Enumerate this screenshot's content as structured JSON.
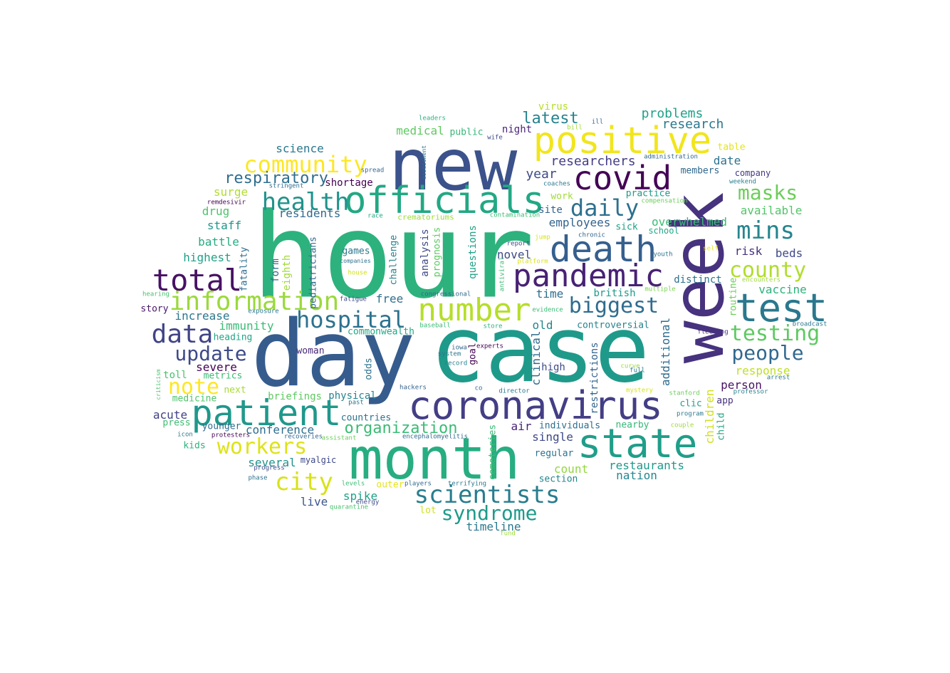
{
  "wordcloud": {
    "palette": "viridis",
    "background": "#ffffff",
    "words": [
      {
        "text": "hour",
        "color": "#2db27d"
      },
      {
        "text": "day",
        "color": "#365c8d"
      },
      {
        "text": "case",
        "color": "#1f9a8a"
      },
      {
        "text": "week",
        "color": "#46327e"
      },
      {
        "text": "new",
        "color": "#3b528b"
      },
      {
        "text": "month",
        "color": "#27ad81"
      },
      {
        "text": "patient",
        "color": "#1f988b"
      },
      {
        "text": "coronavirus",
        "color": "#433e85"
      },
      {
        "text": "state",
        "color": "#1f9e89"
      },
      {
        "text": "positive",
        "color": "#f1e51d"
      },
      {
        "text": "officials",
        "color": "#22a884"
      },
      {
        "text": "covid",
        "color": "#440154"
      },
      {
        "text": "death",
        "color": "#355f8d"
      },
      {
        "text": "pandemic",
        "color": "#482173"
      },
      {
        "text": "number",
        "color": "#b5de2b"
      },
      {
        "text": "test",
        "color": "#2a788e"
      },
      {
        "text": "total",
        "color": "#471164"
      },
      {
        "text": "information",
        "color": "#9bd93c"
      },
      {
        "text": "health",
        "color": "#20938c"
      },
      {
        "text": "hospital",
        "color": "#2c728e"
      },
      {
        "text": "community",
        "color": "#fde725"
      },
      {
        "text": "data",
        "color": "#414487"
      },
      {
        "text": "scientists",
        "color": "#287d8e"
      },
      {
        "text": "syndrome",
        "color": "#1e9b8a"
      },
      {
        "text": "masks",
        "color": "#6ccd5a"
      },
      {
        "text": "mins",
        "color": "#25858e"
      },
      {
        "text": "county",
        "color": "#b0dd2f"
      },
      {
        "text": "testing",
        "color": "#5ec962"
      },
      {
        "text": "people",
        "color": "#31688e"
      },
      {
        "text": "biggest",
        "color": "#2f6c8e"
      },
      {
        "text": "daily",
        "color": "#2d708e"
      },
      {
        "text": "city",
        "color": "#d8e219"
      },
      {
        "text": "workers",
        "color": "#dde318"
      },
      {
        "text": "note",
        "color": "#fde725"
      },
      {
        "text": "update",
        "color": "#3e4a89"
      },
      {
        "text": "respiratory",
        "color": "#2e6e8e"
      },
      {
        "text": "organization",
        "color": "#3bbb75"
      },
      {
        "text": "latest",
        "color": "#26828e"
      },
      {
        "text": "researchers",
        "color": "#433e85"
      },
      {
        "text": "problems",
        "color": "#1fa187"
      },
      {
        "text": "research",
        "color": "#2a788e"
      },
      {
        "text": "virus",
        "color": "#b5de2b"
      },
      {
        "text": "medical",
        "color": "#5ec962"
      },
      {
        "text": "public",
        "color": "#35b779"
      },
      {
        "text": "night",
        "color": "#482475"
      },
      {
        "text": "science",
        "color": "#2a788e"
      },
      {
        "text": "shortage",
        "color": "#440154"
      },
      {
        "text": "surge",
        "color": "#b0dd2f"
      },
      {
        "text": "drug",
        "color": "#4ec36b"
      },
      {
        "text": "residents",
        "color": "#31688e"
      },
      {
        "text": "staff",
        "color": "#1f968b"
      },
      {
        "text": "battle",
        "color": "#25ab82"
      },
      {
        "text": "highest",
        "color": "#1fa187"
      },
      {
        "text": "year",
        "color": "#3e4a89"
      },
      {
        "text": "date",
        "color": "#2c728e"
      },
      {
        "text": "members",
        "color": "#31688e"
      },
      {
        "text": "company",
        "color": "#443a83"
      },
      {
        "text": "table",
        "color": "#e5e419"
      },
      {
        "text": "work",
        "color": "#a2da37"
      },
      {
        "text": "practice",
        "color": "#1f9a8a"
      },
      {
        "text": "site",
        "color": "#33638d"
      },
      {
        "text": "employees",
        "color": "#33638d"
      },
      {
        "text": "sick",
        "color": "#1fa088"
      },
      {
        "text": "school",
        "color": "#21a685"
      },
      {
        "text": "overwhelmed",
        "color": "#3bbb75"
      },
      {
        "text": "available",
        "color": "#52c569"
      },
      {
        "text": "vaccine",
        "color": "#2db27d"
      },
      {
        "text": "beds",
        "color": "#3e4989"
      },
      {
        "text": "risk",
        "color": "#46327e"
      },
      {
        "text": "distinct",
        "color": "#2c728e"
      },
      {
        "text": "novel",
        "color": "#3e4989"
      },
      {
        "text": "time",
        "color": "#2f6c8e"
      },
      {
        "text": "british",
        "color": "#1f9a8a"
      },
      {
        "text": "controversial",
        "color": "#26828e"
      },
      {
        "text": "old",
        "color": "#25858e"
      },
      {
        "text": "free",
        "color": "#2e6e8e"
      },
      {
        "text": "games",
        "color": "#2a788e"
      },
      {
        "text": "immunity",
        "color": "#3bbb75"
      },
      {
        "text": "increase",
        "color": "#2a788e"
      },
      {
        "text": "heading",
        "color": "#21a685"
      },
      {
        "text": "story",
        "color": "#481668"
      },
      {
        "text": "severe",
        "color": "#440154"
      },
      {
        "text": "toll",
        "color": "#4ac16d"
      },
      {
        "text": "metrics",
        "color": "#3bbb75"
      },
      {
        "text": "medicine",
        "color": "#4ec36b"
      },
      {
        "text": "next",
        "color": "#a8db34"
      },
      {
        "text": "briefings",
        "color": "#5ec962"
      },
      {
        "text": "physical",
        "color": "#26828e"
      },
      {
        "text": "commonwealth",
        "color": "#22a884"
      },
      {
        "text": "woman",
        "color": "#482878"
      },
      {
        "text": "acute",
        "color": "#424086"
      },
      {
        "text": "press",
        "color": "#40bd72"
      },
      {
        "text": "younger",
        "color": "#2f6c8e"
      },
      {
        "text": "countries",
        "color": "#2c728e"
      },
      {
        "text": "conference",
        "color": "#2e6e8e"
      },
      {
        "text": "several",
        "color": "#21918c"
      },
      {
        "text": "kids",
        "color": "#2db27d"
      },
      {
        "text": "myalgic",
        "color": "#3e4989"
      },
      {
        "text": "spike",
        "color": "#1fa187"
      },
      {
        "text": "live",
        "color": "#39568c"
      },
      {
        "text": "lot",
        "color": "#d0e11c"
      },
      {
        "text": "timeline",
        "color": "#2a788e"
      },
      {
        "text": "outer",
        "color": "#e5e419"
      },
      {
        "text": "air",
        "color": "#482475"
      },
      {
        "text": "individuals",
        "color": "#2e6e8e"
      },
      {
        "text": "single",
        "color": "#3e4989"
      },
      {
        "text": "regular",
        "color": "#2c728e"
      },
      {
        "text": "count",
        "color": "#93d741"
      },
      {
        "text": "section",
        "color": "#25858e"
      },
      {
        "text": "high",
        "color": "#3e4a89"
      },
      {
        "text": "nearby",
        "color": "#35b779"
      },
      {
        "text": "restaurants",
        "color": "#1f988b"
      },
      {
        "text": "nation",
        "color": "#23888e"
      },
      {
        "text": "response",
        "color": "#bddf26"
      },
      {
        "text": "person",
        "color": "#471164"
      },
      {
        "text": "clic",
        "color": "#1fa088"
      },
      {
        "text": "app",
        "color": "#46327e"
      },
      {
        "text": "goal",
        "color": "#440154"
      },
      {
        "text": "clinical",
        "color": "#2f6c8e"
      },
      {
        "text": "additional",
        "color": "#2f6c8e"
      },
      {
        "text": "restrictions",
        "color": "#33638d"
      },
      {
        "text": "children",
        "color": "#d0e11c"
      },
      {
        "text": "child",
        "color": "#20a386"
      },
      {
        "text": "routine",
        "color": "#6ece58"
      },
      {
        "text": "cemeteries",
        "color": "#3bbb75"
      },
      {
        "text": "odds",
        "color": "#2c728e"
      },
      {
        "text": "challenge",
        "color": "#26828e"
      },
      {
        "text": "analysis",
        "color": "#3e4989"
      },
      {
        "text": "prognosis",
        "color": "#5ec962"
      },
      {
        "text": "questions",
        "color": "#1fa187"
      },
      {
        "text": "pediatricians",
        "color": "#31688e"
      },
      {
        "text": "form",
        "color": "#31688e"
      },
      {
        "text": "eighth",
        "color": "#a0da39"
      },
      {
        "text": "fatality",
        "color": "#2e6e8e"
      },
      {
        "text": "leaders",
        "color": "#2db27d"
      },
      {
        "text": "bill",
        "color": "#a0da39"
      },
      {
        "text": "ill",
        "color": "#33638d"
      },
      {
        "text": "administration",
        "color": "#31688e"
      },
      {
        "text": "assessment",
        "color": "#2c728e"
      },
      {
        "text": "spread",
        "color": "#31688e"
      },
      {
        "text": "wife",
        "color": "#3e4989"
      },
      {
        "text": "stringent",
        "color": "#2f6c8e"
      },
      {
        "text": "coaches",
        "color": "#2a788e"
      },
      {
        "text": "weekend",
        "color": "#26828e"
      },
      {
        "text": "remdesivir",
        "color": "#440154"
      },
      {
        "text": "race",
        "color": "#22a884"
      },
      {
        "text": "crematoriums",
        "color": "#a0da39"
      },
      {
        "text": "contamination",
        "color": "#3bbb75"
      },
      {
        "text": "compensation",
        "color": "#6ccd5a"
      },
      {
        "text": "jump",
        "color": "#d8e219"
      },
      {
        "text": "chronic",
        "color": "#33638d"
      },
      {
        "text": "report",
        "color": "#3e4989"
      },
      {
        "text": "platform",
        "color": "#d8e219"
      },
      {
        "text": "youth",
        "color": "#2c728e"
      },
      {
        "text": "self",
        "color": "#e5e419"
      },
      {
        "text": "companies",
        "color": "#2c728e"
      },
      {
        "text": "house",
        "color": "#d0e11c"
      },
      {
        "text": "antiviral",
        "color": "#3bbb75"
      },
      {
        "text": "encounters",
        "color": "#a0da39"
      },
      {
        "text": "hearing",
        "color": "#4ac16d"
      },
      {
        "text": "multiple",
        "color": "#7ad151"
      },
      {
        "text": "exposure",
        "color": "#2a788e"
      },
      {
        "text": "fatigue",
        "color": "#3e4989"
      },
      {
        "text": "congressional",
        "color": "#31688e"
      },
      {
        "text": "evidence",
        "color": "#3bbb75"
      },
      {
        "text": "baseball",
        "color": "#3bbb75"
      },
      {
        "text": "store",
        "color": "#2db27d"
      },
      {
        "text": "broadcast",
        "color": "#2a788e"
      },
      {
        "text": "fleeting",
        "color": "#46327e"
      },
      {
        "text": "iowa",
        "color": "#31688e"
      },
      {
        "text": "experts",
        "color": "#440154"
      },
      {
        "text": "system",
        "color": "#2a788e"
      },
      {
        "text": "record",
        "color": "#26828e"
      },
      {
        "text": "curve",
        "color": "#a0da39"
      },
      {
        "text": "full",
        "color": "#2a788e"
      },
      {
        "text": "arrest",
        "color": "#2a788e"
      },
      {
        "text": "criticism",
        "color": "#4ac16d"
      },
      {
        "text": "hackers",
        "color": "#33638d"
      },
      {
        "text": "co",
        "color": "#2c728e"
      },
      {
        "text": "director",
        "color": "#2a788e"
      },
      {
        "text": "mystery",
        "color": "#d8e219"
      },
      {
        "text": "stanford",
        "color": "#6ccd5a"
      },
      {
        "text": "professor",
        "color": "#26828e"
      },
      {
        "text": "past",
        "color": "#2c728e"
      },
      {
        "text": "program",
        "color": "#2a788e"
      },
      {
        "text": "icon",
        "color": "#2a788e"
      },
      {
        "text": "couple",
        "color": "#a0da39"
      },
      {
        "text": "protesters",
        "color": "#440154"
      },
      {
        "text": "progress",
        "color": "#3e4989"
      },
      {
        "text": "recoveries",
        "color": "#31688e"
      },
      {
        "text": "assistant",
        "color": "#6ccd5a"
      },
      {
        "text": "encephalomyelitis",
        "color": "#31688e"
      },
      {
        "text": "phase",
        "color": "#2c728e"
      },
      {
        "text": "levels",
        "color": "#3bbb75"
      },
      {
        "text": "players",
        "color": "#31688e"
      },
      {
        "text": "terrifying",
        "color": "#2a788e"
      },
      {
        "text": "energy",
        "color": "#3e4989"
      },
      {
        "text": "quarantine",
        "color": "#4ac16d"
      },
      {
        "text": "fund",
        "color": "#a0da39"
      }
    ]
  }
}
